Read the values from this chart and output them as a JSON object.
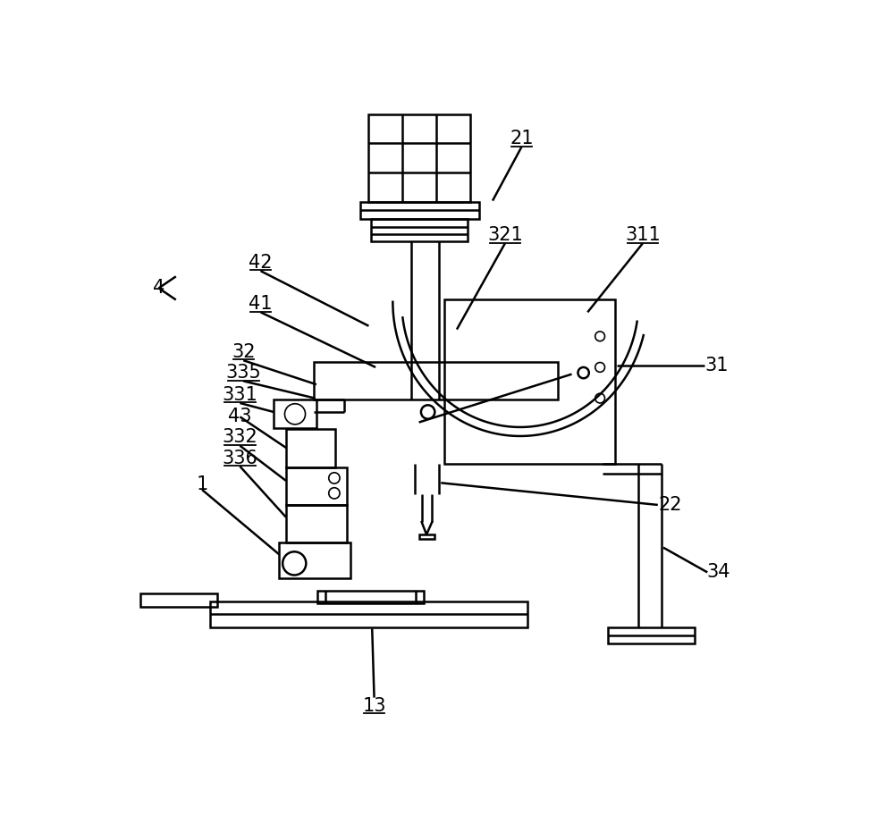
{
  "bg_color": "#ffffff",
  "line_color": "#000000",
  "lw": 1.8,
  "lw_thin": 1.2,
  "label_fontsize": 15,
  "fig_w": 10.0,
  "fig_h": 9.22
}
